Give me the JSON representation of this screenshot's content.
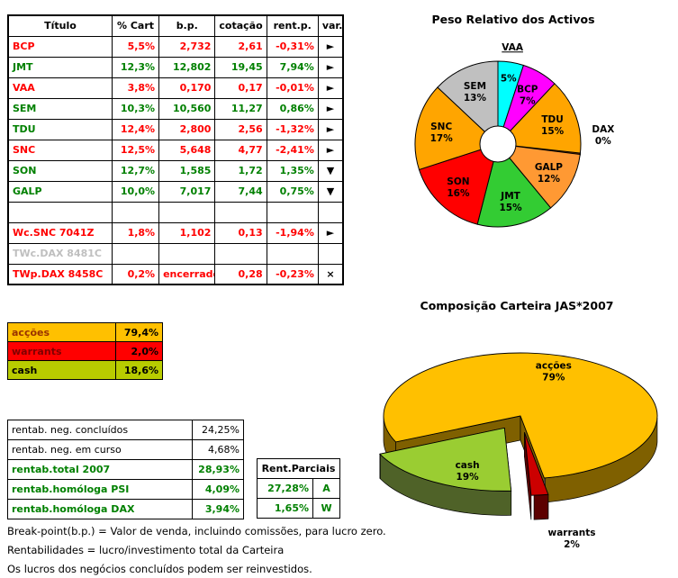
{
  "portfolio_table": {
    "headers": [
      "Título",
      "% Cart",
      "b.p.",
      "cotação",
      "rent.p.",
      "var."
    ],
    "rows": [
      {
        "name": "BCP",
        "cart": "5,5%",
        "bp": "2,732",
        "cot": "2,61",
        "rent": "-0,31%",
        "arrow": "right",
        "name_color": "#FF0000",
        "value_color": "#FF0000"
      },
      {
        "name": "JMT",
        "cart": "12,3%",
        "bp": "12,802",
        "cot": "19,45",
        "rent": "7,94%",
        "arrow": "right",
        "name_color": "#008000",
        "value_color": "#008000"
      },
      {
        "name": "VAA",
        "cart": "3,8%",
        "bp": "0,170",
        "cot": "0,17",
        "rent": "-0,01%",
        "arrow": "right",
        "name_color": "#FF0000",
        "value_color": "#FF0000"
      },
      {
        "name": "SEM",
        "cart": "10,3%",
        "bp": "10,560",
        "cot": "11,27",
        "rent": "0,86%",
        "arrow": "right",
        "name_color": "#008000",
        "value_color": "#008000"
      },
      {
        "name": "TDU",
        "cart": "12,4%",
        "bp": "2,800",
        "cot": "2,56",
        "rent": "-1,32%",
        "arrow": "right",
        "name_color": "#008000",
        "value_color": "#FF0000"
      },
      {
        "name": "SNC",
        "cart": "12,5%",
        "bp": "5,648",
        "cot": "4,77",
        "rent": "-2,41%",
        "arrow": "right",
        "name_color": "#FF0000",
        "value_color": "#FF0000"
      },
      {
        "name": "SON",
        "cart": "12,7%",
        "bp": "1,585",
        "cot": "1,72",
        "rent": "1,35%",
        "arrow": "down",
        "name_color": "#008000",
        "value_color": "#008000"
      },
      {
        "name": "GALP",
        "cart": "10,0%",
        "bp": "7,017",
        "cot": "7,44",
        "rent": "0,75%",
        "arrow": "down",
        "name_color": "#008000",
        "value_color": "#008000"
      },
      {
        "name": "",
        "cart": "",
        "bp": "",
        "cot": "",
        "rent": "",
        "arrow": "",
        "name_color": "#000000",
        "value_color": "#000000"
      },
      {
        "name": "Wc.SNC 7041Z",
        "cart": "1,8%",
        "bp": "1,102",
        "cot": "0,13",
        "rent": "-1,94%",
        "arrow": "right",
        "name_color": "#FF0000",
        "value_color": "#FF0000"
      },
      {
        "name": "TWc.DAX 8481C",
        "cart": "",
        "bp": "",
        "cot": "",
        "rent": "",
        "arrow": "",
        "name_color": "#BFBFBF",
        "value_color": "#BFBFBF"
      },
      {
        "name": "TWp.DAX 8458C",
        "cart": "0,2%",
        "bp": "encerrado",
        "cot": "0,28",
        "rent": "-0,23%",
        "arrow": "x",
        "name_color": "#FF0000",
        "value_color": "#FF0000"
      }
    ]
  },
  "icons": {
    "right": "►",
    "down": "▼",
    "x": "×",
    "": ""
  },
  "allocation_table": {
    "rows": [
      {
        "label": "acções",
        "value": "79,4%",
        "bg": "#FFC000",
        "label_color": "#993300",
        "value_color": "#000000"
      },
      {
        "label": "warrants",
        "value": "2,0%",
        "bg": "#FF0000",
        "label_color": "#7F0000",
        "value_color": "#000000"
      },
      {
        "label": "cash",
        "value": "18,6%",
        "bg": "#B8CC00",
        "label_color": "#000000",
        "value_color": "#000000"
      }
    ]
  },
  "returns_table": {
    "rows": [
      {
        "label": "rentab. neg. concluídos",
        "value": "24,25%",
        "color": "#000000",
        "bold": false
      },
      {
        "label": "rentab. neg. em curso",
        "value": "4,68%",
        "color": "#000000",
        "bold": false
      },
      {
        "label": "rentab.total 2007",
        "value": "28,93%",
        "color": "#008000",
        "bold": true
      },
      {
        "label": "rentab.homóloga PSI",
        "value": "4,09%",
        "color": "#008000",
        "bold": true
      },
      {
        "label": "rentab.homóloga DAX",
        "value": "3,94%",
        "color": "#008000",
        "bold": true
      }
    ]
  },
  "partials_table": {
    "header": "Rent.Parciais",
    "rows": [
      {
        "value": "27,28%",
        "tag": "A"
      },
      {
        "value": "1,65%",
        "tag": "W"
      }
    ]
  },
  "footnotes": [
    "Break-point(b.p.) = Valor de venda, incluindo comissões, para lucro zero.",
    "Rentabilidades = lucro/investimento total da Carteira",
    "Os lucros dos negócios concluídos podem ser reinvestidos."
  ],
  "chart_data": [
    {
      "type": "pie",
      "title": "Peso Relativo dos Activos",
      "donut_hole": true,
      "legend_position": "none",
      "slices": [
        {
          "name": "VAA",
          "value": 5,
          "color": "#00FFFF",
          "label_mode": "callout-top"
        },
        {
          "name": "BCP",
          "value": 7,
          "color": "#FF00FF",
          "label_mode": "inside"
        },
        {
          "name": "TDU",
          "value": 15,
          "color": "#FFA500",
          "label_mode": "inside"
        },
        {
          "name": "DAX",
          "value": 0,
          "color": "#803300",
          "label_mode": "outside"
        },
        {
          "name": "GALP",
          "value": 12,
          "color": "#FF9933",
          "label_mode": "inside"
        },
        {
          "name": "JMT",
          "value": 15,
          "color": "#33CC33",
          "label_mode": "inside"
        },
        {
          "name": "SON",
          "value": 16,
          "color": "#FF0000",
          "label_mode": "inside"
        },
        {
          "name": "SNC",
          "value": 17,
          "color": "#FFA500",
          "label_mode": "inside"
        },
        {
          "name": "SEM",
          "value": 13,
          "color": "#C0C0C0",
          "label_mode": "inside"
        }
      ]
    },
    {
      "type": "pie",
      "title": "Composição Carteira JAS*2007",
      "style_3d": true,
      "start_angle": 155.6,
      "legend_position": "none",
      "slices": [
        {
          "name": "acções",
          "value": 79,
          "color": "#FFC000",
          "side_color": "#7F6000",
          "explode": 0,
          "label_mode": "inside"
        },
        {
          "name": "warrants",
          "value": 2,
          "color": "#CC0000",
          "side_color": "#5C0000",
          "explode": 40,
          "label_mode": "outside-bottom"
        },
        {
          "name": "cash",
          "value": 19,
          "color": "#9ACD32",
          "side_color": "#4F6228",
          "explode": 34,
          "label_mode": "inside"
        }
      ]
    }
  ]
}
